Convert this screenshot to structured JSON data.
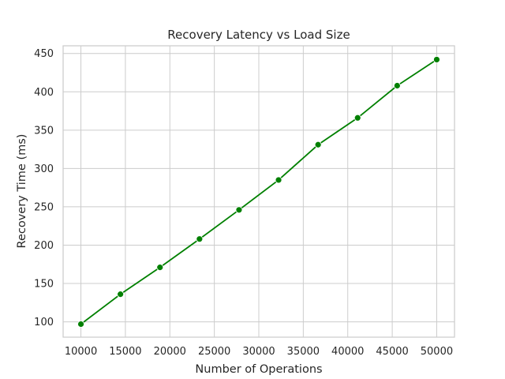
{
  "chart_data": {
    "type": "line",
    "title": "Recovery Latency vs Load Size",
    "xlabel": "Number of Operations",
    "ylabel": "Recovery Time (ms)",
    "xlim": [
      8000,
      52000
    ],
    "ylim": [
      80,
      460
    ],
    "xticks": [
      10000,
      15000,
      20000,
      25000,
      30000,
      35000,
      40000,
      45000,
      50000
    ],
    "yticks": [
      100,
      150,
      200,
      250,
      300,
      350,
      400,
      450
    ],
    "grid": true,
    "series": [
      {
        "color": "#008000",
        "marker": "circle",
        "x": [
          10000,
          14444,
          18889,
          23333,
          27778,
          32222,
          36667,
          41111,
          45556,
          50000
        ],
        "y": [
          97,
          136,
          171,
          208,
          246,
          285,
          331,
          366,
          408,
          442
        ]
      }
    ]
  }
}
